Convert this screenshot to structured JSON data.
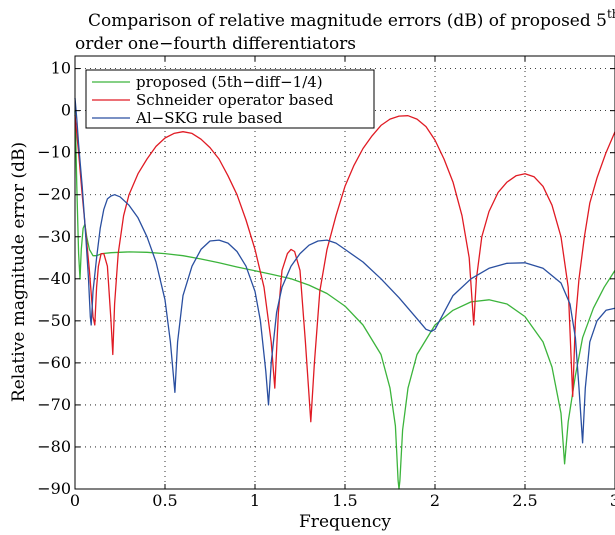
{
  "chart_data": {
    "type": "line",
    "title_line1": "Comparison of relative magnitude errors (dB) of proposed 5",
    "title_sup": "th",
    "title_line2": "order one−fourth differentiators",
    "xlabel": "Frequency",
    "ylabel": "Relative magnitude error (dB)",
    "xlim": [
      0,
      3
    ],
    "ylim": [
      -90,
      13
    ],
    "xticks": [
      0,
      0.5,
      1,
      1.5,
      2,
      2.5,
      3
    ],
    "xtick_labels": [
      "0",
      "0.5",
      "1",
      "1.5",
      "2",
      "2.5",
      "3"
    ],
    "yticks": [
      10,
      0,
      -10,
      -20,
      -30,
      -40,
      -50,
      -60,
      -70,
      -80,
      -90
    ],
    "ytick_labels": [
      "10",
      "0",
      "−10",
      "−20",
      "−30",
      "−40",
      "−50",
      "−60",
      "−70",
      "−80",
      "−90"
    ],
    "grid": true,
    "legend_position": "top-left",
    "series": [
      {
        "name": "proposed (5th−diff−1/4)",
        "color": "#3cb43c",
        "points": [
          [
            0,
            0
          ],
          [
            0.005,
            -8
          ],
          [
            0.01,
            -18
          ],
          [
            0.015,
            -26
          ],
          [
            0.02,
            -34
          ],
          [
            0.028,
            -40
          ],
          [
            0.035,
            -33
          ],
          [
            0.045,
            -28
          ],
          [
            0.055,
            -27
          ],
          [
            0.065,
            -30
          ],
          [
            0.08,
            -33
          ],
          [
            0.1,
            -34.5
          ],
          [
            0.12,
            -34.5
          ],
          [
            0.15,
            -34
          ],
          [
            0.2,
            -33.8
          ],
          [
            0.3,
            -33.6
          ],
          [
            0.4,
            -33.7
          ],
          [
            0.5,
            -34
          ],
          [
            0.6,
            -34.5
          ],
          [
            0.7,
            -35.3
          ],
          [
            0.8,
            -36.2
          ],
          [
            0.9,
            -37.2
          ],
          [
            1.0,
            -38.1
          ],
          [
            1.1,
            -39
          ],
          [
            1.2,
            -40
          ],
          [
            1.3,
            -41.5
          ],
          [
            1.4,
            -43.5
          ],
          [
            1.5,
            -46.5
          ],
          [
            1.6,
            -51
          ],
          [
            1.7,
            -58
          ],
          [
            1.75,
            -66
          ],
          [
            1.78,
            -75
          ],
          [
            1.795,
            -88
          ],
          [
            1.8,
            -90
          ],
          [
            1.805,
            -88
          ],
          [
            1.82,
            -76
          ],
          [
            1.85,
            -66
          ],
          [
            1.9,
            -58
          ],
          [
            2.0,
            -51
          ],
          [
            2.1,
            -47.5
          ],
          [
            2.2,
            -45.5
          ],
          [
            2.3,
            -45
          ],
          [
            2.4,
            -46
          ],
          [
            2.5,
            -49
          ],
          [
            2.6,
            -55
          ],
          [
            2.65,
            -61
          ],
          [
            2.7,
            -72
          ],
          [
            2.72,
            -84
          ],
          [
            2.74,
            -74
          ],
          [
            2.78,
            -63
          ],
          [
            2.82,
            -54
          ],
          [
            2.88,
            -47
          ],
          [
            2.94,
            -42
          ],
          [
            3.0,
            -38
          ]
        ]
      },
      {
        "name": "Schneider operator based",
        "color": "#e01b24",
        "points": [
          [
            0,
            -1
          ],
          [
            0.02,
            -10
          ],
          [
            0.04,
            -20
          ],
          [
            0.06,
            -29
          ],
          [
            0.08,
            -38
          ],
          [
            0.1,
            -49
          ],
          [
            0.11,
            -51
          ],
          [
            0.12,
            -42
          ],
          [
            0.13,
            -37
          ],
          [
            0.145,
            -34
          ],
          [
            0.16,
            -34
          ],
          [
            0.18,
            -37
          ],
          [
            0.2,
            -50
          ],
          [
            0.21,
            -58
          ],
          [
            0.22,
            -46
          ],
          [
            0.24,
            -34
          ],
          [
            0.27,
            -25
          ],
          [
            0.3,
            -20
          ],
          [
            0.35,
            -15
          ],
          [
            0.4,
            -11.5
          ],
          [
            0.45,
            -8.5
          ],
          [
            0.5,
            -6.5
          ],
          [
            0.55,
            -5.4
          ],
          [
            0.6,
            -5
          ],
          [
            0.65,
            -5.4
          ],
          [
            0.7,
            -6.8
          ],
          [
            0.75,
            -8.8
          ],
          [
            0.8,
            -11.5
          ],
          [
            0.85,
            -15.5
          ],
          [
            0.9,
            -20
          ],
          [
            0.95,
            -26
          ],
          [
            1.0,
            -33
          ],
          [
            1.05,
            -42
          ],
          [
            1.09,
            -55
          ],
          [
            1.11,
            -66
          ],
          [
            1.13,
            -48
          ],
          [
            1.15,
            -38
          ],
          [
            1.18,
            -34
          ],
          [
            1.2,
            -33
          ],
          [
            1.22,
            -33.5
          ],
          [
            1.25,
            -38
          ],
          [
            1.28,
            -55
          ],
          [
            1.31,
            -74
          ],
          [
            1.33,
            -60
          ],
          [
            1.36,
            -43
          ],
          [
            1.4,
            -33
          ],
          [
            1.45,
            -25
          ],
          [
            1.5,
            -18
          ],
          [
            1.55,
            -13
          ],
          [
            1.6,
            -9
          ],
          [
            1.65,
            -6
          ],
          [
            1.7,
            -3.5
          ],
          [
            1.75,
            -2
          ],
          [
            1.8,
            -1.3
          ],
          [
            1.85,
            -1.2
          ],
          [
            1.9,
            -2
          ],
          [
            1.95,
            -3.8
          ],
          [
            2.0,
            -7
          ],
          [
            2.05,
            -11.5
          ],
          [
            2.1,
            -17
          ],
          [
            2.15,
            -25
          ],
          [
            2.19,
            -35
          ],
          [
            2.215,
            -51
          ],
          [
            2.23,
            -40
          ],
          [
            2.26,
            -30
          ],
          [
            2.3,
            -24
          ],
          [
            2.35,
            -19.5
          ],
          [
            2.4,
            -17
          ],
          [
            2.45,
            -15.5
          ],
          [
            2.5,
            -15
          ],
          [
            2.55,
            -15.7
          ],
          [
            2.6,
            -18
          ],
          [
            2.65,
            -22.5
          ],
          [
            2.7,
            -30
          ],
          [
            2.74,
            -42
          ],
          [
            2.765,
            -68
          ],
          [
            2.78,
            -50
          ],
          [
            2.8,
            -40
          ],
          [
            2.83,
            -30
          ],
          [
            2.86,
            -22
          ],
          [
            2.9,
            -16
          ],
          [
            2.95,
            -10
          ],
          [
            3.0,
            -5
          ]
        ]
      },
      {
        "name": "Al−SKG rule based",
        "color": "#2a4fa0",
        "points": [
          [
            0,
            3
          ],
          [
            0.01,
            -2
          ],
          [
            0.02,
            -8
          ],
          [
            0.04,
            -18
          ],
          [
            0.06,
            -30
          ],
          [
            0.075,
            -40
          ],
          [
            0.085,
            -49
          ],
          [
            0.09,
            -51
          ],
          [
            0.1,
            -43
          ],
          [
            0.12,
            -35
          ],
          [
            0.14,
            -28
          ],
          [
            0.16,
            -23.5
          ],
          [
            0.18,
            -21
          ],
          [
            0.2,
            -20.3
          ],
          [
            0.22,
            -20
          ],
          [
            0.25,
            -20.5
          ],
          [
            0.3,
            -22.5
          ],
          [
            0.35,
            -25.5
          ],
          [
            0.4,
            -30
          ],
          [
            0.45,
            -36
          ],
          [
            0.5,
            -45
          ],
          [
            0.53,
            -55
          ],
          [
            0.555,
            -67
          ],
          [
            0.57,
            -55
          ],
          [
            0.6,
            -44
          ],
          [
            0.65,
            -37
          ],
          [
            0.7,
            -33
          ],
          [
            0.75,
            -31
          ],
          [
            0.8,
            -30.8
          ],
          [
            0.85,
            -31.5
          ],
          [
            0.9,
            -33.5
          ],
          [
            0.95,
            -37
          ],
          [
            1.0,
            -43
          ],
          [
            1.03,
            -50
          ],
          [
            1.06,
            -62
          ],
          [
            1.075,
            -70
          ],
          [
            1.09,
            -60
          ],
          [
            1.12,
            -48
          ],
          [
            1.15,
            -42
          ],
          [
            1.2,
            -37
          ],
          [
            1.25,
            -34
          ],
          [
            1.3,
            -32
          ],
          [
            1.35,
            -31
          ],
          [
            1.4,
            -30.8
          ],
          [
            1.45,
            -31.5
          ],
          [
            1.5,
            -33
          ],
          [
            1.6,
            -36
          ],
          [
            1.7,
            -40
          ],
          [
            1.8,
            -44.5
          ],
          [
            1.9,
            -49.5
          ],
          [
            1.95,
            -52
          ],
          [
            1.98,
            -52.5
          ],
          [
            2.0,
            -52
          ],
          [
            2.05,
            -48
          ],
          [
            2.1,
            -44
          ],
          [
            2.2,
            -40
          ],
          [
            2.3,
            -37.5
          ],
          [
            2.4,
            -36.3
          ],
          [
            2.5,
            -36.2
          ],
          [
            2.6,
            -37.5
          ],
          [
            2.7,
            -41
          ],
          [
            2.75,
            -46
          ],
          [
            2.78,
            -54
          ],
          [
            2.8,
            -66
          ],
          [
            2.82,
            -79
          ],
          [
            2.835,
            -66
          ],
          [
            2.86,
            -55
          ],
          [
            2.9,
            -50
          ],
          [
            2.95,
            -47.5
          ],
          [
            3.0,
            -47
          ]
        ]
      }
    ]
  }
}
